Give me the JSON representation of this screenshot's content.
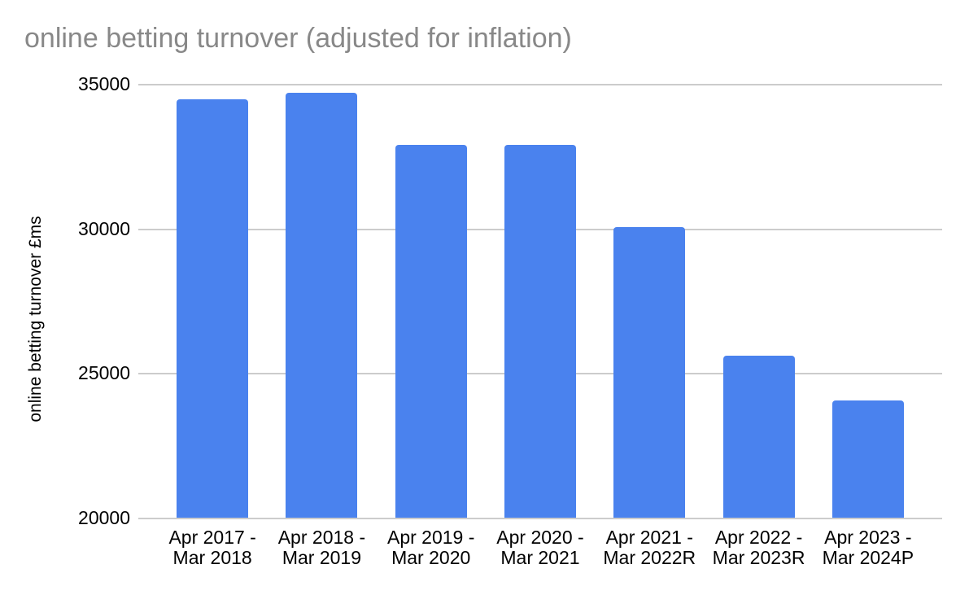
{
  "title": "online betting turnover (adjusted for inflation)",
  "colors": {
    "bar": "#4a82ee",
    "gridline": "#cccccc",
    "title_text": "#888888",
    "axis_text": "#000000",
    "background": "#ffffff"
  },
  "chart_data": {
    "type": "bar",
    "title": "online betting turnover (adjusted for inflation)",
    "xlabel": "",
    "ylabel": "online betting turnover £ms",
    "categories": [
      "Apr 2017 -\nMar 2018",
      "Apr 2018 -\nMar 2019",
      "Apr 2019 -\nMar 2020",
      "Apr 2020 -\nMar 2021",
      "Apr 2021 -\nMar 2022R",
      "Apr 2022 -\nMar 2023R",
      "Apr 2023 -\nMar 2024P"
    ],
    "values": [
      34500,
      34730,
      32920,
      32920,
      30070,
      25620,
      24080
    ],
    "ylim": [
      20000,
      35000
    ],
    "yticks": [
      35000,
      30000,
      25000,
      20000
    ],
    "ytick_labels": [
      "35000",
      "30000",
      "25000",
      "20000"
    ],
    "grid": true,
    "legend": "none"
  }
}
